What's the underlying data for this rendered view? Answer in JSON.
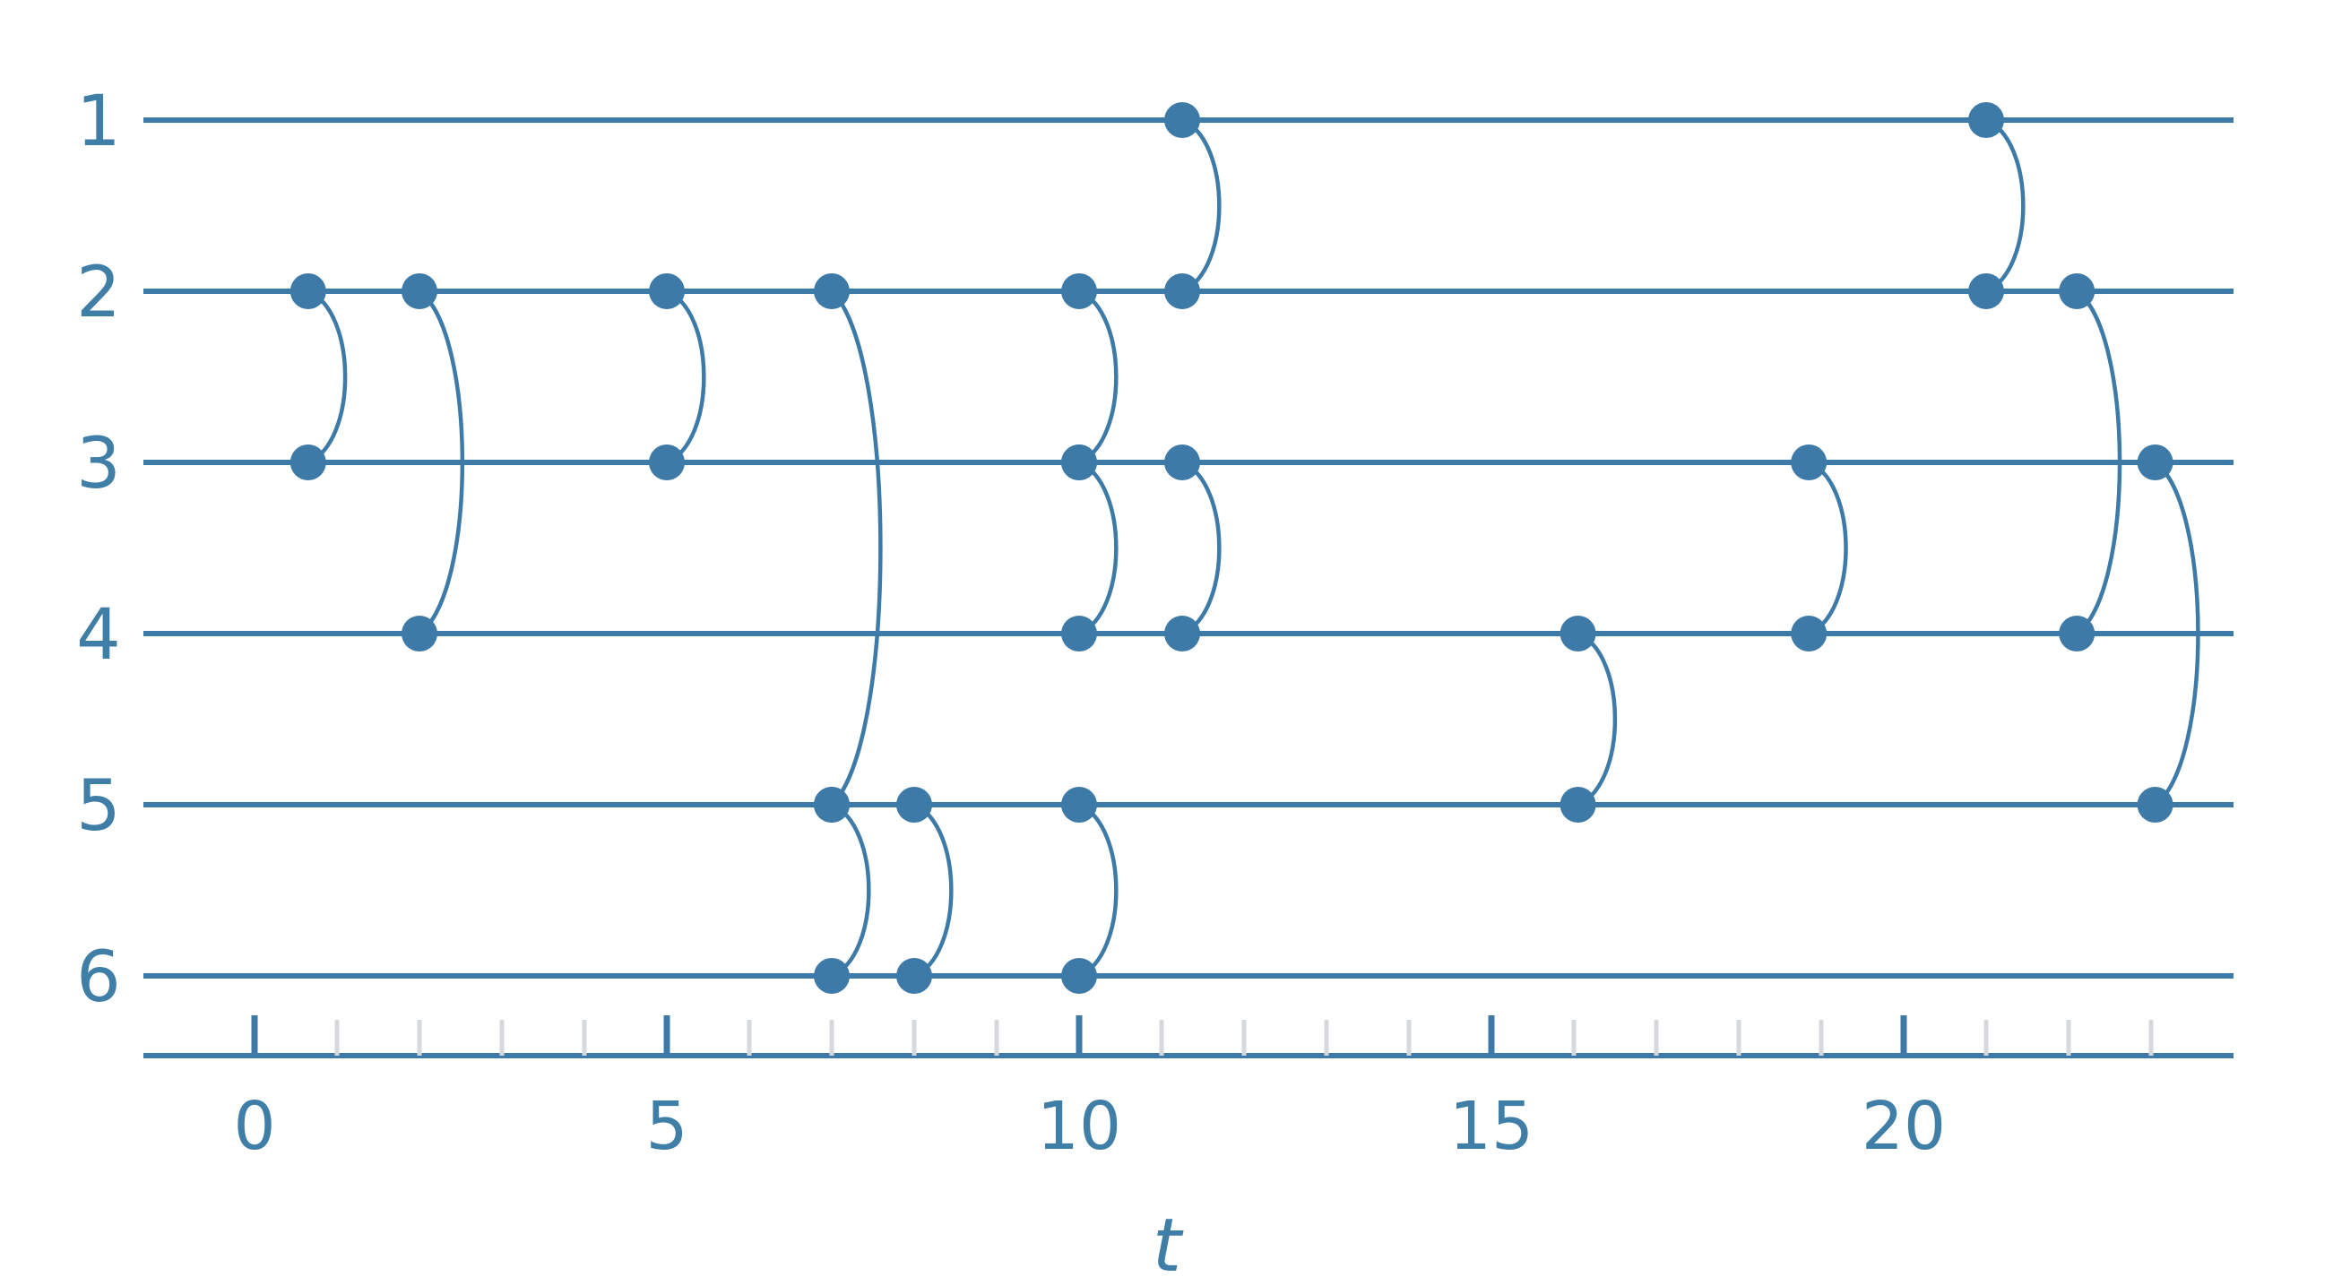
{
  "colors": {
    "line": "#3d7aa8",
    "text": "#3f7ea6",
    "minor_tick": "#d5d9dd",
    "background": "#ffffff"
  },
  "lanes": [
    "1",
    "2",
    "3",
    "4",
    "5",
    "6"
  ],
  "axis": {
    "label": "t",
    "min": -1.35,
    "max": 24,
    "major_ticks": [
      0,
      5,
      10,
      15,
      20
    ],
    "major_tick_labels": [
      "0",
      "5",
      "10",
      "15",
      "20"
    ],
    "minor_step": 1
  },
  "interactions": [
    {
      "t": 0.65,
      "from": 2,
      "to": 3
    },
    {
      "t": 2.0,
      "from": 2,
      "to": 4
    },
    {
      "t": 5.0,
      "from": 2,
      "to": 3
    },
    {
      "t": 7.0,
      "from": 2,
      "to": 5
    },
    {
      "t": 7.0,
      "from": 5,
      "to": 6
    },
    {
      "t": 8.0,
      "from": 5,
      "to": 6
    },
    {
      "t": 10.0,
      "from": 2,
      "to": 3
    },
    {
      "t": 10.0,
      "from": 3,
      "to": 4
    },
    {
      "t": 10.0,
      "from": 5,
      "to": 6
    },
    {
      "t": 11.25,
      "from": 1,
      "to": 2
    },
    {
      "t": 11.25,
      "from": 3,
      "to": 4
    },
    {
      "t": 16.05,
      "from": 4,
      "to": 5
    },
    {
      "t": 18.85,
      "from": 3,
      "to": 4
    },
    {
      "t": 21.0,
      "from": 1,
      "to": 2
    },
    {
      "t": 22.1,
      "from": 2,
      "to": 4
    },
    {
      "t": 23.05,
      "from": 3,
      "to": 5
    }
  ]
}
